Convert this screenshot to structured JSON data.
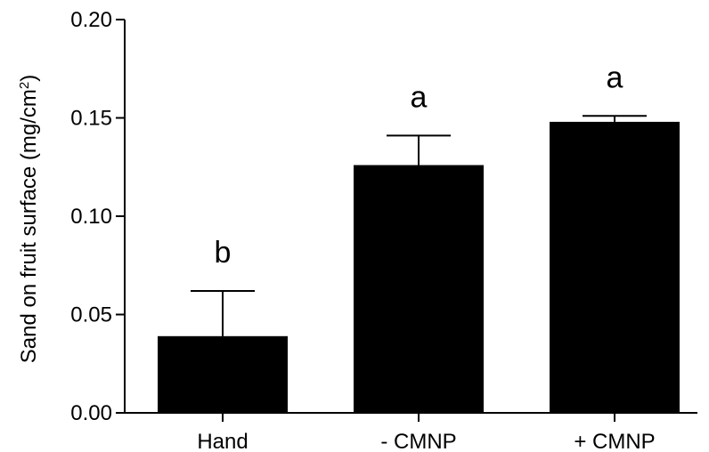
{
  "chart_data": {
    "type": "bar",
    "title": "",
    "xlabel": "",
    "ylabel": "Sand on fruit surface (mg/cm",
    "ylabel_sup": "2",
    "ylabel_end": ")",
    "categories": [
      "Hand",
      "- CMNP",
      "+ CMNP"
    ],
    "values": [
      0.039,
      0.126,
      0.148
    ],
    "errors": [
      0.023,
      0.015,
      0.003
    ],
    "significance": [
      "b",
      "a",
      "a"
    ],
    "ylim": [
      0,
      0.2
    ],
    "yticks": [
      0.0,
      0.05,
      0.1,
      0.15,
      0.2
    ],
    "ytick_labels": [
      "0.00",
      "0.05",
      "0.10",
      "0.15",
      "0.20"
    ],
    "bar_color": "#000000",
    "grid": false,
    "legend": "none"
  }
}
